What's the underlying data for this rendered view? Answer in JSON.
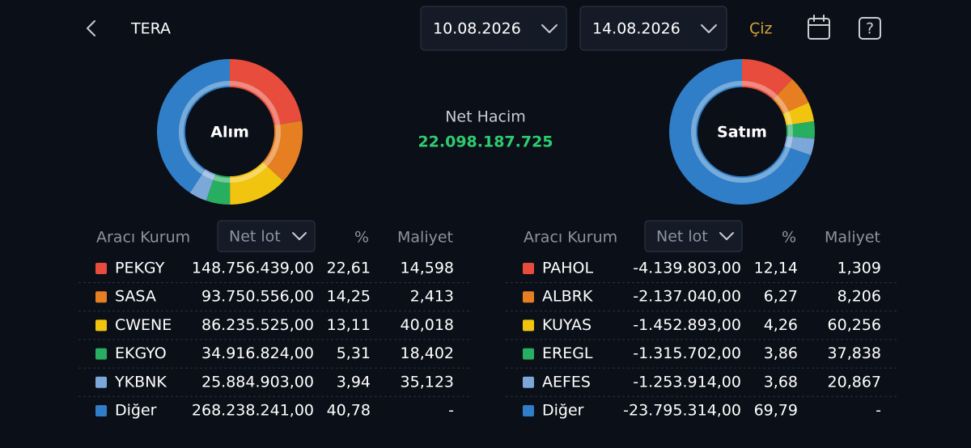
{
  "header": {
    "title": "TERA",
    "start_date": "10.08.2026",
    "end_date": "14.08.2026",
    "draw_button": "Çiz"
  },
  "net_volume": {
    "label": "Net Hacim",
    "value": "22.098.187.725"
  },
  "buy": {
    "donut_label": "Alım",
    "columns": {
      "broker": "Aracı Kurum",
      "net_lot": "Net lot",
      "pct": "%",
      "cost": "Maliyet"
    },
    "rows": [
      {
        "name": "PEKGY",
        "color": "#e74c3c",
        "net_lot": "148.756.439,00",
        "pct": {
          "value": 22.61,
          "label": "22,61"
        },
        "cost": "14,598"
      },
      {
        "name": "SASA",
        "color": "#e67e22",
        "net_lot": "93.750.556,00",
        "pct": {
          "value": 14.25,
          "label": "14,25"
        },
        "cost": "2,413"
      },
      {
        "name": "CWENE",
        "color": "#f1c40f",
        "net_lot": "86.235.525,00",
        "pct": {
          "value": 13.11,
          "label": "13,11"
        },
        "cost": "40,018"
      },
      {
        "name": "EKGYO",
        "color": "#27ae60",
        "net_lot": "34.916.824,00",
        "pct": {
          "value": 5.31,
          "label": "5,31"
        },
        "cost": "18,402"
      },
      {
        "name": "YKBNK",
        "color": "#7ba7d9",
        "net_lot": "25.884.903,00",
        "pct": {
          "value": 3.94,
          "label": "3,94"
        },
        "cost": "35,123"
      },
      {
        "name": "Diğer",
        "color": "#2f7ec7",
        "net_lot": "268.238.241,00",
        "pct": {
          "value": 40.78,
          "label": "40,78"
        },
        "cost": "-"
      }
    ]
  },
  "sell": {
    "donut_label": "Satım",
    "columns": {
      "broker": "Aracı Kurum",
      "net_lot": "Net lot",
      "pct": "%",
      "cost": "Maliyet"
    },
    "rows": [
      {
        "name": "PAHOL",
        "color": "#e74c3c",
        "net_lot": "-4.139.803,00",
        "pct": {
          "value": 12.14,
          "label": "12,14"
        },
        "cost": "1,309"
      },
      {
        "name": "ALBRK",
        "color": "#e67e22",
        "net_lot": "-2.137.040,00",
        "pct": {
          "value": 6.27,
          "label": "6,27"
        },
        "cost": "8,206"
      },
      {
        "name": "KUYAS",
        "color": "#f1c40f",
        "net_lot": "-1.452.893,00",
        "pct": {
          "value": 4.26,
          "label": "4,26"
        },
        "cost": "60,256"
      },
      {
        "name": "EREGL",
        "color": "#27ae60",
        "net_lot": "-1.315.702,00",
        "pct": {
          "value": 3.86,
          "label": "3,86"
        },
        "cost": "37,838"
      },
      {
        "name": "AEFES",
        "color": "#7ba7d9",
        "net_lot": "-1.253.914,00",
        "pct": {
          "value": 3.68,
          "label": "3,68"
        },
        "cost": "20,867"
      },
      {
        "name": "Diğer",
        "color": "#2f7ec7",
        "net_lot": "-23.795.314,00",
        "pct": {
          "value": 69.79,
          "label": "69,79"
        },
        "cost": "-"
      }
    ]
  }
}
